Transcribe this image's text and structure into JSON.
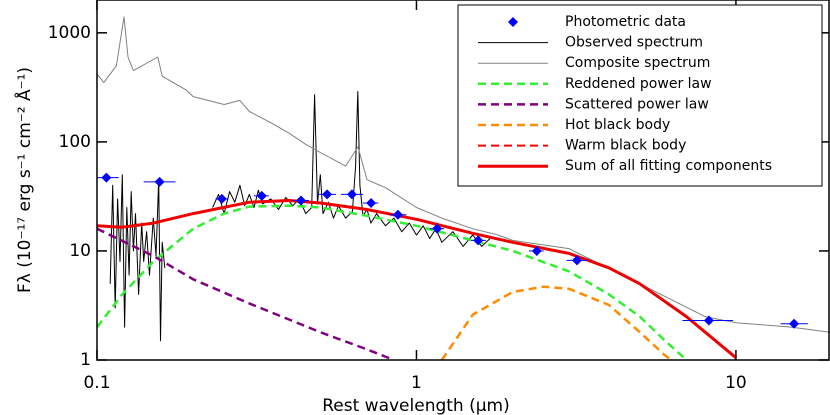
{
  "chart_data": {
    "type": "line",
    "x_label": "Rest wavelength (μm)",
    "y_label": "Fλ (10⁻¹⁷ erg s⁻¹ cm⁻² Å⁻¹)",
    "log_x": true,
    "log_y": true,
    "xlim": [
      0.1,
      19.7
    ],
    "ylim": [
      1,
      2000
    ],
    "xticks": [
      0.1,
      1,
      10
    ],
    "yticks": [
      1,
      10,
      100,
      1000
    ],
    "legend": "upper right",
    "series": [
      {
        "name": "Photometric data",
        "kind": "scatter",
        "color": "#0000ff",
        "x": [
          0.107,
          0.157,
          0.246,
          0.328,
          0.435,
          0.525,
          0.628,
          0.721,
          0.875,
          1.16,
          1.56,
          2.38,
          3.18,
          8.23,
          15.2
        ],
        "x_low": [
          0.1,
          0.14,
          0.235,
          0.31,
          0.41,
          0.49,
          0.58,
          0.68,
          0.82,
          1.1,
          1.48,
          2.25,
          2.95,
          6.8,
          13.8
        ],
        "x_high": [
          0.117,
          0.176,
          0.258,
          0.345,
          0.46,
          0.56,
          0.68,
          0.76,
          0.93,
          1.22,
          1.65,
          2.5,
          3.45,
          9.8,
          16.8
        ],
        "values": [
          47,
          43,
          30,
          32,
          29,
          33,
          33,
          27.5,
          21.5,
          16,
          12.5,
          10,
          8.2,
          2.3,
          2.15
        ]
      },
      {
        "name": "Observed spectrum",
        "kind": "line",
        "color": "#000000",
        "width": 1,
        "dash": false,
        "x": [
          0.11,
          0.112,
          0.114,
          0.116,
          0.118,
          0.12,
          0.122,
          0.124,
          0.126,
          0.128,
          0.13,
          0.132,
          0.135,
          0.138,
          0.14,
          0.143,
          0.146,
          0.15,
          0.153,
          0.156,
          0.158,
          0.16,
          0.163,
          0.2,
          0.23,
          0.24,
          0.25,
          0.26,
          0.27,
          0.28,
          0.29,
          0.3,
          0.31,
          0.32,
          0.33,
          0.35,
          0.37,
          0.39,
          0.41,
          0.43,
          0.45,
          0.47,
          0.48,
          0.49,
          0.5,
          0.51,
          0.53,
          0.55,
          0.57,
          0.6,
          0.63,
          0.645,
          0.655,
          0.665,
          0.68,
          0.7,
          0.72,
          0.75,
          0.8,
          0.85,
          0.9,
          0.95,
          1.0,
          1.05,
          1.1,
          1.15,
          1.2,
          1.3,
          1.4,
          1.5,
          1.6,
          1.7
        ],
        "values": [
          5,
          40,
          3,
          30,
          8,
          50,
          2,
          25,
          6,
          35,
          10,
          22,
          4,
          18,
          8,
          15,
          6,
          20,
          9,
          45,
          1.5,
          12,
          7,
          null,
          25,
          33,
          22,
          35,
          28,
          40,
          26,
          33,
          25,
          36,
          27,
          30,
          24,
          31,
          26,
          30,
          22,
          25,
          270,
          27,
          50,
          22,
          28,
          20,
          26,
          20,
          23,
          60,
          290,
          40,
          21,
          24,
          18,
          22,
          17,
          20,
          15,
          18,
          14,
          17,
          13,
          16,
          12,
          15,
          11,
          14,
          11,
          13
        ]
      },
      {
        "name": "Composite spectrum",
        "kind": "line",
        "color": "#808080",
        "width": 1,
        "dash": false,
        "x": [
          0.1,
          0.105,
          0.115,
          0.1215,
          0.125,
          0.13,
          0.155,
          0.16,
          0.19,
          0.2,
          0.25,
          0.28,
          0.3,
          0.35,
          0.4,
          0.45,
          0.5,
          0.6,
          0.656,
          0.7,
          0.8,
          1,
          1.2,
          1.5,
          1.8,
          2,
          3,
          5,
          8,
          10,
          15,
          19.7
        ],
        "values": [
          420,
          350,
          500,
          1400,
          600,
          450,
          600,
          400,
          300,
          260,
          220,
          240,
          190,
          150,
          120,
          95,
          80,
          60,
          90,
          45,
          38,
          25,
          20,
          16,
          14,
          12.5,
          10.5,
          5,
          2.5,
          2.2,
          2,
          1.8
        ]
      },
      {
        "name": "Reddened power law",
        "kind": "line",
        "color": "#33ee33",
        "width": 2.5,
        "dash": true,
        "x": [
          0.1,
          0.12,
          0.15,
          0.2,
          0.25,
          0.3,
          0.4,
          0.5,
          0.7,
          1,
          1.5,
          2,
          3,
          4,
          5,
          6,
          7
        ],
        "values": [
          2,
          4,
          8,
          16,
          22,
          25.5,
          26,
          25,
          21,
          17,
          12.5,
          10,
          6.5,
          4,
          2.5,
          1.5,
          1.0
        ]
      },
      {
        "name": "Scattered power law",
        "kind": "line",
        "color": "#800080",
        "width": 2.5,
        "dash": true,
        "x": [
          0.1,
          0.15,
          0.2,
          0.3,
          0.5,
          0.7,
          0.85
        ],
        "values": [
          16,
          9,
          5.5,
          3.3,
          1.8,
          1.25,
          1.0
        ]
      },
      {
        "name": "Hot black body",
        "kind": "line",
        "color": "#ff8c00",
        "width": 2.5,
        "dash": true,
        "x": [
          1.2,
          1.5,
          2,
          2.5,
          3,
          4,
          5,
          6,
          6.3
        ],
        "values": [
          1,
          2.6,
          4.2,
          4.7,
          4.5,
          3.2,
          1.8,
          1.1,
          1
        ]
      },
      {
        "name": "Warm black body",
        "kind": "line",
        "color": "#ff0000",
        "width": 2,
        "dash": true,
        "x": [],
        "values": []
      },
      {
        "name": "Sum of all fitting components",
        "kind": "line",
        "color": "#ee0000",
        "width": 3,
        "dash": false,
        "x": [
          0.1,
          0.12,
          0.15,
          0.2,
          0.3,
          0.4,
          0.5,
          0.7,
          1,
          1.5,
          2,
          3,
          4,
          5,
          7,
          10
        ],
        "values": [
          17,
          16.5,
          18,
          22,
          28,
          29,
          27.5,
          24,
          19.5,
          14.5,
          12,
          9.5,
          7,
          5,
          2.5,
          1.05
        ]
      }
    ]
  }
}
